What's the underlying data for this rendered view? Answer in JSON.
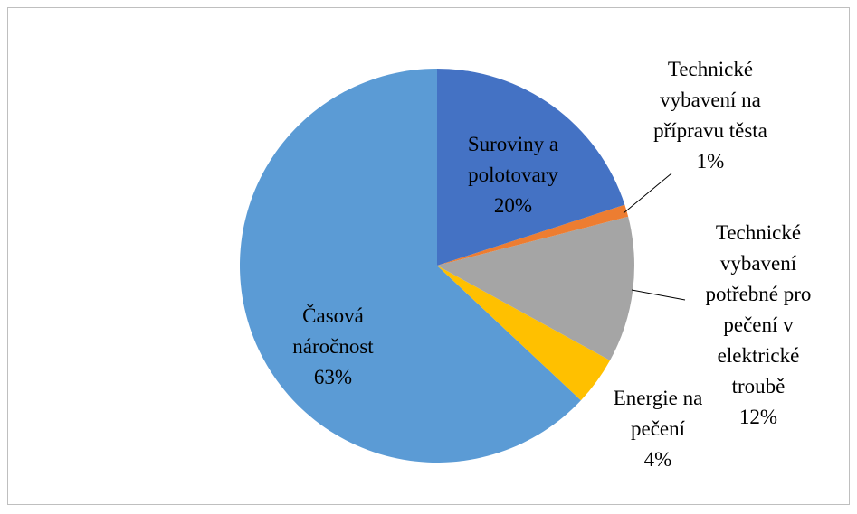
{
  "chart_data": {
    "type": "pie",
    "categories": [
      "Suroviny a polotovary",
      "Technické vybavení na přípravu těsta",
      "Technické vybavení potřebné pro pečení v elektrické troubě",
      "Energie na pečení",
      "Časová náročnost"
    ],
    "values": [
      20,
      1,
      12,
      4,
      63
    ],
    "value_labels": [
      "20%",
      "1%",
      "12%",
      "4%",
      "63%"
    ],
    "colors": [
      "#4472c4",
      "#ed7d31",
      "#a5a5a5",
      "#ffc000",
      "#5b9bd5"
    ]
  }
}
